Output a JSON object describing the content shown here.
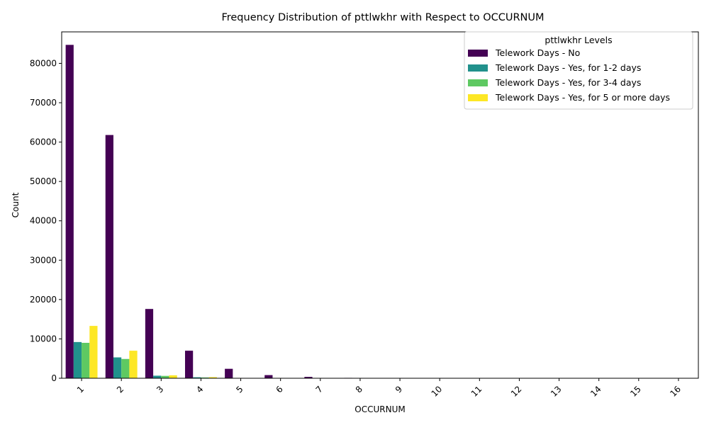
{
  "chart_data": {
    "type": "bar",
    "title": "Frequency Distribution of pttlwkhr with Respect to OCCURNUM",
    "xlabel": "OCCURNUM",
    "ylabel": "Count",
    "ylim": [
      0,
      88000
    ],
    "yticks": [
      "0",
      "10000",
      "20000",
      "30000",
      "40000",
      "50000",
      "60000",
      "70000",
      "80000"
    ],
    "categories": [
      "1",
      "2",
      "3",
      "4",
      "5",
      "6",
      "7",
      "8",
      "9",
      "10",
      "11",
      "12",
      "13",
      "14",
      "15",
      "16"
    ],
    "legend": {
      "title": "pttlwkhr Levels",
      "position": "top-right"
    },
    "series": [
      {
        "name": "Telework Days - No",
        "color": "#440154",
        "values": [
          84700,
          61800,
          17600,
          7000,
          2400,
          800,
          350,
          100,
          50,
          30,
          20,
          10,
          10,
          10,
          5,
          5
        ]
      },
      {
        "name": "Telework Days - Yes, for 1-2 days",
        "color": "#21918c",
        "values": [
          9200,
          5300,
          650,
          250,
          70,
          20,
          10,
          5,
          0,
          0,
          0,
          0,
          0,
          0,
          0,
          0
        ]
      },
      {
        "name": "Telework Days - Yes, for 3-4 days",
        "color": "#5ec962",
        "values": [
          9000,
          4900,
          600,
          200,
          60,
          20,
          10,
          5,
          0,
          0,
          0,
          0,
          0,
          0,
          0,
          0
        ]
      },
      {
        "name": "Telework Days - Yes, for 5 or more days",
        "color": "#fde725",
        "values": [
          13300,
          7000,
          750,
          280,
          80,
          20,
          10,
          5,
          0,
          0,
          0,
          0,
          0,
          0,
          0,
          0
        ]
      }
    ]
  }
}
